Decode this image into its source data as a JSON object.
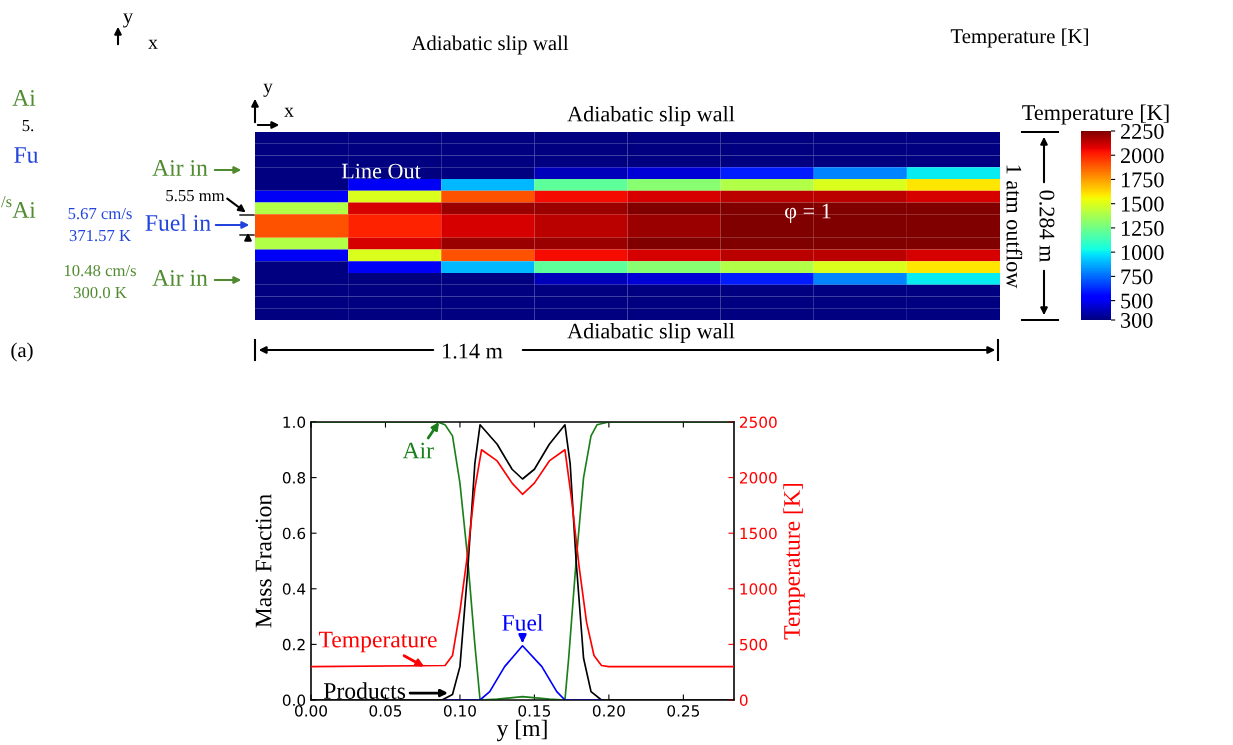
{
  "chart_data": [
    {
      "type": "heatmap",
      "categories": [
        null,
        null,
        null,
        null,
        null,
        null,
        null,
        null
      ],
      "y_categories": [
        null,
        null,
        null,
        null,
        null,
        null,
        null,
        null,
        null,
        null,
        null,
        null,
        null,
        null,
        null,
        null
      ],
      "cells": [
        [
          300,
          300,
          300,
          300,
          300,
          300,
          300,
          300
        ],
        [
          300,
          300,
          300,
          300,
          300,
          300,
          300,
          300
        ],
        [
          300,
          300,
          300,
          300,
          300,
          300,
          300,
          300
        ],
        [
          300,
          300,
          300,
          400,
          450,
          600,
          800,
          1000
        ],
        [
          300,
          500,
          900,
          1200,
          1300,
          1400,
          1500,
          1600
        ],
        [
          500,
          1500,
          1900,
          2050,
          2100,
          2150,
          2150,
          2100
        ],
        [
          1400,
          2100,
          2200,
          2200,
          2250,
          2250,
          2250,
          2250
        ],
        [
          1900,
          2000,
          2100,
          2150,
          2200,
          2250,
          2250,
          2250
        ],
        [
          1900,
          2000,
          2100,
          2150,
          2200,
          2250,
          2250,
          2250
        ],
        [
          1400,
          2100,
          2200,
          2200,
          2250,
          2250,
          2250,
          2250
        ],
        [
          500,
          1500,
          1900,
          2050,
          2100,
          2150,
          2150,
          2100
        ],
        [
          300,
          500,
          900,
          1200,
          1300,
          1400,
          1500,
          1600
        ],
        [
          300,
          300,
          300,
          400,
          450,
          600,
          800,
          1000
        ],
        [
          300,
          300,
          300,
          300,
          300,
          300,
          300,
          300
        ],
        [
          300,
          300,
          300,
          300,
          300,
          300,
          300,
          300
        ],
        [
          300,
          300,
          300,
          300,
          300,
          300,
          300,
          300
        ]
      ],
      "clim": [
        300,
        2250
      ],
      "cticks": [
        300,
        500,
        750,
        1000,
        1250,
        1500,
        1750,
        2000,
        2250
      ],
      "clabel": "Temperature [K]",
      "tick_labels": false,
      "annotations": [
        "y",
        "x",
        "Adiabatic slip wall",
        "Temperature [K]",
        "Ai",
        "5.",
        "Fu",
        "/s",
        "Ai",
        "Adiabatic slip wall",
        "Line Out",
        "φ = 1",
        "Air in",
        "5.55 mm",
        "5.67 cm/s",
        "371.57 K",
        "Fuel in",
        "10.48 cm/s",
        "300.0 K",
        "Air in",
        "Adiabatic slip wall",
        "1.14 m",
        "0.284 m",
        "1 atm outflow",
        "(a)",
        "y",
        "x"
      ]
    },
    {
      "type": "line",
      "xlabel": "y [m]",
      "ylabel": "Mass Fraction",
      "y2label": "Temperature [K]",
      "xlim": [
        0,
        0.284
      ],
      "xticks": [
        {
          "value": 0,
          "label": "0.00"
        },
        0.05,
        {
          "value": 0.1,
          "label": "0.10"
        },
        0.15,
        {
          "value": 0.2,
          "label": "0.20"
        },
        0.25
      ],
      "ylim": [
        0,
        1
      ],
      "yticks": [
        {
          "value": 0,
          "label": "0.0"
        },
        0.2,
        0.4,
        0.6,
        0.8,
        {
          "value": 1,
          "label": "1.0"
        }
      ],
      "y2lim": [
        0,
        2500
      ],
      "y2ticks": [
        0,
        500,
        1000,
        1500,
        2000,
        2500
      ],
      "grid": false,
      "annotations": [
        {
          "text": "Air",
          "x": 0.086,
          "y": 1.0
        },
        {
          "text": "Products",
          "x": 0.092,
          "y": 0.025
        },
        {
          "text": "Fuel",
          "x": 0.142,
          "y": 0.205
        },
        {
          "text": "Temperature",
          "x": 0.076,
          "y": 0.12
        }
      ],
      "series": [
        {
          "color": "#1a7f1a",
          "x": [
            0,
            0.085,
            0.09,
            0.095,
            0.1,
            0.105,
            0.11,
            0.1135,
            0.125,
            0.142,
            0.16,
            0.1705,
            0.173,
            0.178,
            0.183,
            0.188,
            0.192,
            0.2,
            0.284
          ],
          "values": [
            1,
            1,
            0.99,
            0.95,
            0.78,
            0.52,
            0.2,
            0,
            0.003,
            0.012,
            0.003,
            0,
            0.15,
            0.5,
            0.8,
            0.95,
            0.99,
            1,
            1
          ]
        },
        {
          "color": "#000000",
          "x": [
            0,
            0.088,
            0.095,
            0.1,
            0.105,
            0.11,
            0.1135,
            0.125,
            0.135,
            0.142,
            0.15,
            0.16,
            0.1705,
            0.174,
            0.178,
            0.183,
            0.188,
            0.195,
            0.284
          ],
          "values": [
            0,
            0,
            0.02,
            0.12,
            0.45,
            0.85,
            0.99,
            0.92,
            0.83,
            0.795,
            0.83,
            0.92,
            0.99,
            0.85,
            0.5,
            0.15,
            0.03,
            0,
            0
          ]
        },
        {
          "color": "#0000ff",
          "x": [
            0.09,
            0.1135,
            0.12,
            0.13,
            0.142,
            0.155,
            0.165,
            0.1705,
            0.195
          ],
          "values": [
            0,
            0,
            0.03,
            0.12,
            0.195,
            0.12,
            0.03,
            0,
            0
          ]
        },
        {
          "color": "#ff0000",
          "axis": "y2",
          "x": [
            0,
            0.09,
            0.095,
            0.1,
            0.105,
            0.11,
            0.1145,
            0.125,
            0.135,
            0.142,
            0.15,
            0.16,
            0.1705,
            0.175,
            0.18,
            0.185,
            0.19,
            0.195,
            0.2,
            0.284
          ],
          "values": [
            300,
            310,
            400,
            800,
            1300,
            1900,
            2250,
            2150,
            1950,
            1850,
            1950,
            2150,
            2250,
            1800,
            1200,
            700,
            400,
            310,
            300,
            300
          ]
        }
      ]
    }
  ]
}
